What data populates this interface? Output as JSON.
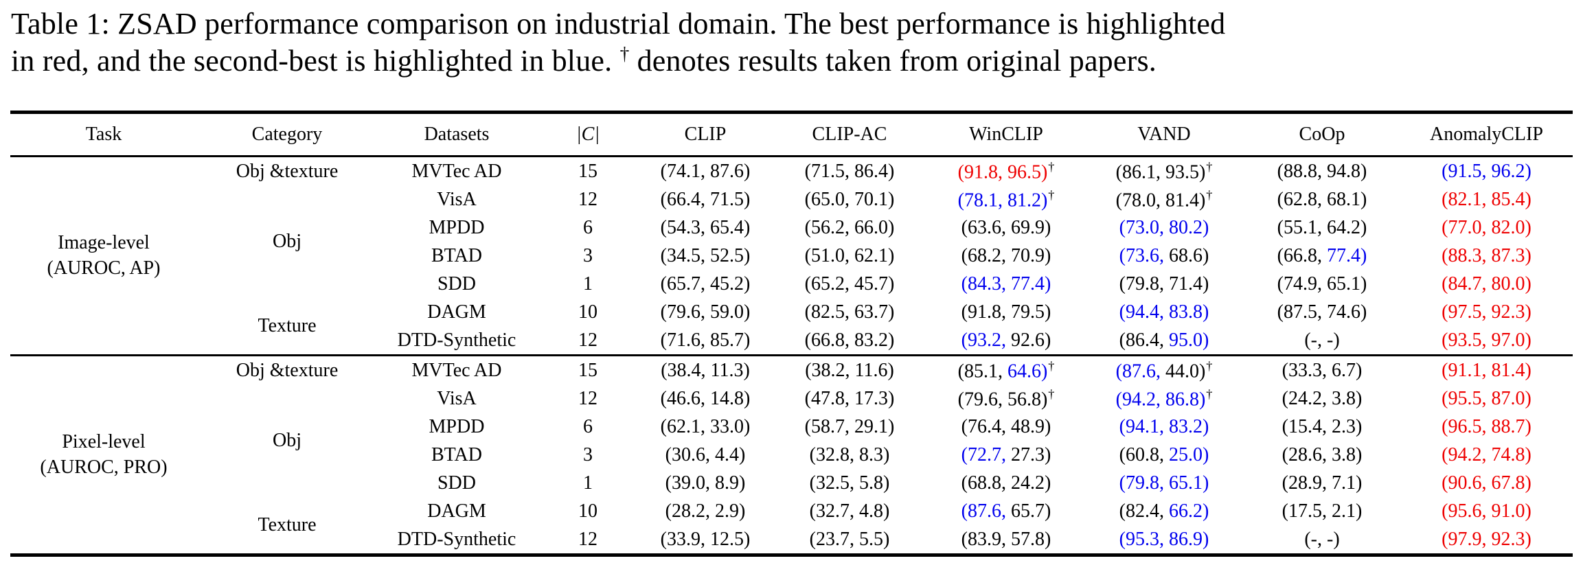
{
  "caption": {
    "line1": "Table 1: ZSAD performance comparison on industrial domain. The best performance is highlighted",
    "line2_pre": "in red, and the second-best is highlighted in blue. ",
    "dagger": "†",
    "line2_post": " denotes results taken from original papers."
  },
  "colors": {
    "best": "#ee0000",
    "second_best": "#0000ee",
    "text": "#000000"
  },
  "table": {
    "columns": [
      "Task",
      "Category",
      "Datasets",
      "|C|",
      "CLIP",
      "CLIP-AC",
      "WinCLIP",
      "VAND",
      "CoOp",
      "AnomalyCLIP"
    ],
    "sections": [
      {
        "task": [
          "Image-level",
          "(AUROC, AP)"
        ],
        "groups": [
          {
            "category": "Obj &texture",
            "rows": [
              {
                "dataset": "MVTec AD",
                "num_classes": "15",
                "results": [
                  [
                    "74.1",
                    "k",
                    "87.6",
                    "k",
                    false
                  ],
                  [
                    "71.5",
                    "k",
                    "86.4",
                    "k",
                    false
                  ],
                  [
                    "91.8",
                    "r",
                    "96.5",
                    "r",
                    true
                  ],
                  [
                    "86.1",
                    "k",
                    "93.5",
                    "k",
                    true
                  ],
                  [
                    "88.8",
                    "k",
                    "94.8",
                    "k",
                    false
                  ],
                  [
                    "91.5",
                    "b",
                    "96.2",
                    "b",
                    false
                  ]
                ]
              }
            ]
          },
          {
            "category": "Obj",
            "rows": [
              {
                "dataset": "VisA",
                "num_classes": "12",
                "results": [
                  [
                    "66.4",
                    "k",
                    "71.5",
                    "k",
                    false
                  ],
                  [
                    "65.0",
                    "k",
                    "70.1",
                    "k",
                    false
                  ],
                  [
                    "78.1",
                    "b",
                    "81.2",
                    "b",
                    true
                  ],
                  [
                    "78.0",
                    "k",
                    "81.4",
                    "k",
                    true
                  ],
                  [
                    "62.8",
                    "k",
                    "68.1",
                    "k",
                    false
                  ],
                  [
                    "82.1",
                    "r",
                    "85.4",
                    "r",
                    false
                  ]
                ]
              },
              {
                "dataset": "MPDD",
                "num_classes": "6",
                "results": [
                  [
                    "54.3",
                    "k",
                    "65.4",
                    "k",
                    false
                  ],
                  [
                    "56.2",
                    "k",
                    "66.0",
                    "k",
                    false
                  ],
                  [
                    "63.6",
                    "k",
                    "69.9",
                    "k",
                    false
                  ],
                  [
                    "73.0",
                    "b",
                    "80.2",
                    "b",
                    false
                  ],
                  [
                    "55.1",
                    "k",
                    "64.2",
                    "k",
                    false
                  ],
                  [
                    "77.0",
                    "r",
                    "82.0",
                    "r",
                    false
                  ]
                ]
              },
              {
                "dataset": "BTAD",
                "num_classes": "3",
                "results": [
                  [
                    "34.5",
                    "k",
                    "52.5",
                    "k",
                    false
                  ],
                  [
                    "51.0",
                    "k",
                    "62.1",
                    "k",
                    false
                  ],
                  [
                    "68.2",
                    "k",
                    "70.9",
                    "k",
                    false
                  ],
                  [
                    "73.6",
                    "b",
                    "68.6",
                    "k",
                    false
                  ],
                  [
                    "66.8",
                    "k",
                    "77.4",
                    "b",
                    false
                  ],
                  [
                    "88.3",
                    "r",
                    "87.3",
                    "r",
                    false
                  ]
                ]
              },
              {
                "dataset": "SDD",
                "num_classes": "1",
                "results": [
                  [
                    "65.7",
                    "k",
                    "45.2",
                    "k",
                    false
                  ],
                  [
                    "65.2",
                    "k",
                    "45.7",
                    "k",
                    false
                  ],
                  [
                    "84.3",
                    "b",
                    "77.4",
                    "b",
                    false
                  ],
                  [
                    "79.8",
                    "k",
                    "71.4",
                    "k",
                    false
                  ],
                  [
                    "74.9",
                    "k",
                    "65.1",
                    "k",
                    false
                  ],
                  [
                    "84.7",
                    "r",
                    "80.0",
                    "r",
                    false
                  ]
                ]
              }
            ]
          },
          {
            "category": "Texture",
            "rows": [
              {
                "dataset": "DAGM",
                "num_classes": "10",
                "results": [
                  [
                    "79.6",
                    "k",
                    "59.0",
                    "k",
                    false
                  ],
                  [
                    "82.5",
                    "k",
                    "63.7",
                    "k",
                    false
                  ],
                  [
                    "91.8",
                    "k",
                    "79.5",
                    "k",
                    false
                  ],
                  [
                    "94.4",
                    "b",
                    "83.8",
                    "b",
                    false
                  ],
                  [
                    "87.5",
                    "k",
                    "74.6",
                    "k",
                    false
                  ],
                  [
                    "97.5",
                    "r",
                    "92.3",
                    "r",
                    false
                  ]
                ]
              },
              {
                "dataset": "DTD-Synthetic",
                "num_classes": "12",
                "results": [
                  [
                    "71.6",
                    "k",
                    "85.7",
                    "k",
                    false
                  ],
                  [
                    "66.8",
                    "k",
                    "83.2",
                    "k",
                    false
                  ],
                  [
                    "93.2",
                    "b",
                    "92.6",
                    "k",
                    false
                  ],
                  [
                    "86.4",
                    "k",
                    "95.0",
                    "b",
                    false
                  ],
                  [
                    "-",
                    "k",
                    "-",
                    "k",
                    false
                  ],
                  [
                    "93.5",
                    "r",
                    "97.0",
                    "r",
                    false
                  ]
                ]
              }
            ]
          }
        ]
      },
      {
        "task": [
          "Pixel-level",
          "(AUROC, PRO)"
        ],
        "groups": [
          {
            "category": "Obj &texture",
            "rows": [
              {
                "dataset": "MVTec AD",
                "num_classes": "15",
                "results": [
                  [
                    "38.4",
                    "k",
                    "11.3",
                    "k",
                    false
                  ],
                  [
                    "38.2",
                    "k",
                    "11.6",
                    "k",
                    false
                  ],
                  [
                    "85.1",
                    "k",
                    "64.6",
                    "b",
                    true
                  ],
                  [
                    "87.6",
                    "b",
                    "44.0",
                    "k",
                    true
                  ],
                  [
                    "33.3",
                    "k",
                    "6.7",
                    "k",
                    false
                  ],
                  [
                    "91.1",
                    "r",
                    "81.4",
                    "r",
                    false
                  ]
                ]
              }
            ]
          },
          {
            "category": "Obj",
            "rows": [
              {
                "dataset": "VisA",
                "num_classes": "12",
                "results": [
                  [
                    "46.6",
                    "k",
                    "14.8",
                    "k",
                    false
                  ],
                  [
                    "47.8",
                    "k",
                    "17.3",
                    "k",
                    false
                  ],
                  [
                    "79.6",
                    "k",
                    "56.8",
                    "k",
                    true
                  ],
                  [
                    "94.2",
                    "b",
                    "86.8",
                    "b",
                    true
                  ],
                  [
                    "24.2",
                    "k",
                    "3.8",
                    "k",
                    false
                  ],
                  [
                    "95.5",
                    "r",
                    "87.0",
                    "r",
                    false
                  ]
                ]
              },
              {
                "dataset": "MPDD",
                "num_classes": "6",
                "results": [
                  [
                    "62.1",
                    "k",
                    "33.0",
                    "k",
                    false
                  ],
                  [
                    "58.7",
                    "k",
                    "29.1",
                    "k",
                    false
                  ],
                  [
                    "76.4",
                    "k",
                    "48.9",
                    "k",
                    false
                  ],
                  [
                    "94.1",
                    "b",
                    "83.2",
                    "b",
                    false
                  ],
                  [
                    "15.4",
                    "k",
                    "2.3",
                    "k",
                    false
                  ],
                  [
                    "96.5",
                    "r",
                    "88.7",
                    "r",
                    false
                  ]
                ]
              },
              {
                "dataset": "BTAD",
                "num_classes": "3",
                "results": [
                  [
                    "30.6",
                    "k",
                    "4.4",
                    "k",
                    false
                  ],
                  [
                    "32.8",
                    "k",
                    "8.3",
                    "k",
                    false
                  ],
                  [
                    "72.7",
                    "b",
                    "27.3",
                    "k",
                    false
                  ],
                  [
                    "60.8",
                    "k",
                    "25.0",
                    "b",
                    false
                  ],
                  [
                    "28.6",
                    "k",
                    "3.8",
                    "k",
                    false
                  ],
                  [
                    "94.2",
                    "r",
                    "74.8",
                    "r",
                    false
                  ]
                ]
              },
              {
                "dataset": "SDD",
                "num_classes": "1",
                "results": [
                  [
                    "39.0",
                    "k",
                    "8.9",
                    "k",
                    false
                  ],
                  [
                    "32.5",
                    "k",
                    "5.8",
                    "k",
                    false
                  ],
                  [
                    "68.8",
                    "k",
                    "24.2",
                    "k",
                    false
                  ],
                  [
                    "79.8",
                    "b",
                    "65.1",
                    "b",
                    false
                  ],
                  [
                    "28.9",
                    "k",
                    "7.1",
                    "k",
                    false
                  ],
                  [
                    "90.6",
                    "r",
                    "67.8",
                    "r",
                    false
                  ]
                ]
              }
            ]
          },
          {
            "category": "Texture",
            "rows": [
              {
                "dataset": "DAGM",
                "num_classes": "10",
                "results": [
                  [
                    "28.2",
                    "k",
                    "2.9",
                    "k",
                    false
                  ],
                  [
                    "32.7",
                    "k",
                    "4.8",
                    "k",
                    false
                  ],
                  [
                    "87.6",
                    "b",
                    "65.7",
                    "k",
                    false
                  ],
                  [
                    "82.4",
                    "k",
                    "66.2",
                    "b",
                    false
                  ],
                  [
                    "17.5",
                    "k",
                    "2.1",
                    "k",
                    false
                  ],
                  [
                    "95.6",
                    "r",
                    "91.0",
                    "r",
                    false
                  ]
                ]
              },
              {
                "dataset": "DTD-Synthetic",
                "num_classes": "12",
                "results": [
                  [
                    "33.9",
                    "k",
                    "12.5",
                    "k",
                    false
                  ],
                  [
                    "23.7",
                    "k",
                    "5.5",
                    "k",
                    false
                  ],
                  [
                    "83.9",
                    "k",
                    "57.8",
                    "k",
                    false
                  ],
                  [
                    "95.3",
                    "b",
                    "86.9",
                    "b",
                    false
                  ],
                  [
                    "-",
                    "k",
                    "-",
                    "k",
                    false
                  ],
                  [
                    "97.9",
                    "r",
                    "92.3",
                    "r",
                    false
                  ]
                ]
              }
            ]
          }
        ]
      }
    ]
  }
}
